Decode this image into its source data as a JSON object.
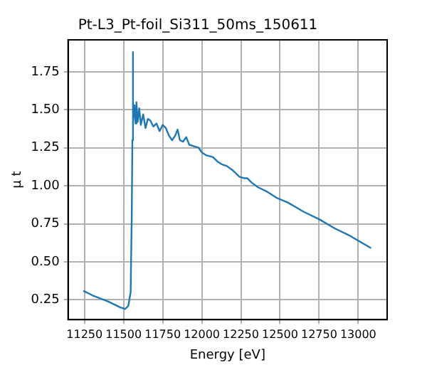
{
  "chart_data": {
    "type": "line",
    "title": "Pt-L3_Pt-foil_Si311_50ms_150611",
    "xlabel": "Energy [eV]",
    "ylabel": "μ t",
    "x": [
      11242,
      11300,
      11400,
      11480,
      11510,
      11530,
      11545,
      11552,
      11556,
      11558,
      11562,
      11570,
      11576,
      11582,
      11590,
      11600,
      11610,
      11625,
      11640,
      11655,
      11670,
      11690,
      11710,
      11730,
      11750,
      11770,
      11790,
      11810,
      11830,
      11845,
      11860,
      11880,
      11900,
      11920,
      11950,
      11980,
      12000,
      12030,
      12070,
      12100,
      12130,
      12160,
      12200,
      12240,
      12270,
      12290,
      12320,
      12360,
      12420,
      12480,
      12550,
      12600,
      12650,
      12750,
      12850,
      12950,
      13082
    ],
    "series": [
      {
        "color": "#1f77b4",
        "values": [
          0.31,
          0.28,
          0.24,
          0.2,
          0.19,
          0.21,
          0.3,
          0.8,
          1.3,
          1.88,
          1.42,
          1.53,
          1.41,
          1.55,
          1.42,
          1.51,
          1.4,
          1.47,
          1.38,
          1.44,
          1.43,
          1.39,
          1.41,
          1.36,
          1.4,
          1.38,
          1.33,
          1.3,
          1.33,
          1.37,
          1.3,
          1.29,
          1.32,
          1.27,
          1.26,
          1.25,
          1.22,
          1.2,
          1.19,
          1.16,
          1.14,
          1.13,
          1.1,
          1.06,
          1.05,
          1.05,
          1.02,
          0.99,
          0.96,
          0.92,
          0.89,
          0.86,
          0.83,
          0.78,
          0.72,
          0.67,
          0.59
        ]
      }
    ],
    "xlim": [
      11145,
      13185
    ],
    "xticks": [
      11250,
      11500,
      11750,
      12000,
      12250,
      12500,
      12750,
      13000
    ],
    "ylim": [
      0.12,
      1.96
    ],
    "yticks": [
      0.25,
      {
        "value": 0.5,
        "label": "0.50"
      },
      0.75,
      {
        "value": 1,
        "label": "1.00"
      },
      1.25,
      {
        "value": 1.5,
        "label": "1.50"
      },
      1.75
    ],
    "grid": true,
    "legend": false,
    "marker": "none",
    "line_style": "solid"
  }
}
